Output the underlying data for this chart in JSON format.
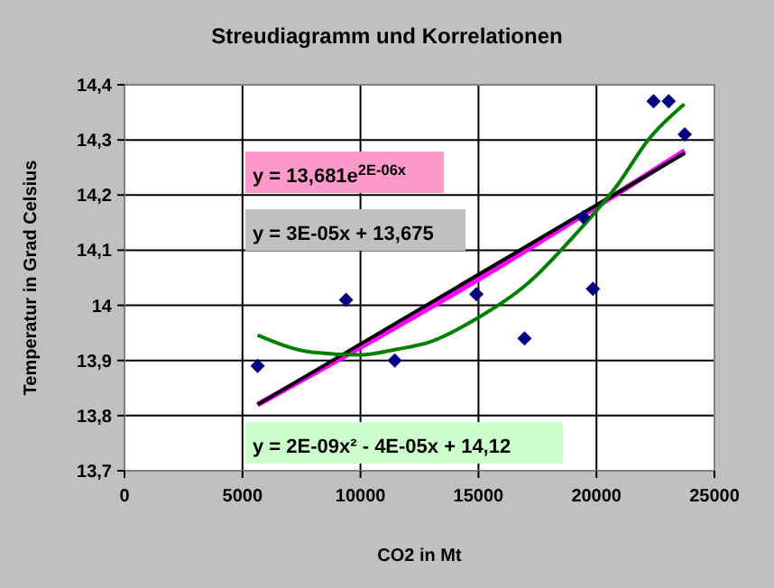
{
  "chart_data": {
    "type": "scatter",
    "title": "Streudiagramm und Korrelationen",
    "xlabel": "CO2 in Mt",
    "ylabel": "Temperatur in Grad Celsius",
    "xlim": [
      0,
      25000
    ],
    "xticks": [
      0,
      5000,
      10000,
      15000,
      20000,
      25000
    ],
    "ylim": [
      13.7,
      14.4
    ],
    "yticks": [
      {
        "value": 13.7,
        "label": "13,7"
      },
      {
        "value": 13.8,
        "label": "13,8"
      },
      {
        "value": 13.9,
        "label": "13,9"
      },
      {
        "value": 14,
        "label": "14"
      },
      {
        "value": 14.1,
        "label": "14,1"
      },
      {
        "value": 14.2,
        "label": "14,2"
      },
      {
        "value": 14.3,
        "label": "14,3"
      },
      {
        "value": 14.4,
        "label": "14,4"
      }
    ],
    "grid": true,
    "series": [
      {
        "type": "scatter",
        "color": "#000080",
        "marker": "diamond",
        "x": [
          5640,
          9390,
          11450,
          14910,
          16950,
          19440,
          19850,
          22420,
          23060,
          23740
        ],
        "values": [
          13.89,
          14.01,
          13.9,
          14.02,
          13.94,
          14.16,
          14.03,
          14.37,
          14.37,
          14.31
        ]
      },
      {
        "type": "line",
        "color": "#ff00ff",
        "marker": "none",
        "x": [
          5640,
          14700,
          23740
        ],
        "values": [
          13.82,
          14.04,
          14.28
        ]
      },
      {
        "type": "line",
        "color": "#000000",
        "marker": "none",
        "x": [
          5640,
          23740
        ],
        "values": [
          13.82,
          14.276
        ]
      },
      {
        "type": "line",
        "color": "#008000",
        "marker": "none",
        "x": [
          5640,
          7940,
          9980,
          11500,
          13030,
          14810,
          17100,
          19140,
          20920,
          22190,
          23720
        ],
        "values": [
          13.946,
          13.915,
          13.91,
          13.92,
          13.935,
          13.973,
          14.04,
          14.13,
          14.22,
          14.3,
          14.365
        ]
      }
    ],
    "annotations": [
      "y = 13,681e$^{2E-06x}$",
      "y = 3E-05x + 13,675",
      "y = 2E-09x² - 4E-05x + 14,12"
    ]
  }
}
